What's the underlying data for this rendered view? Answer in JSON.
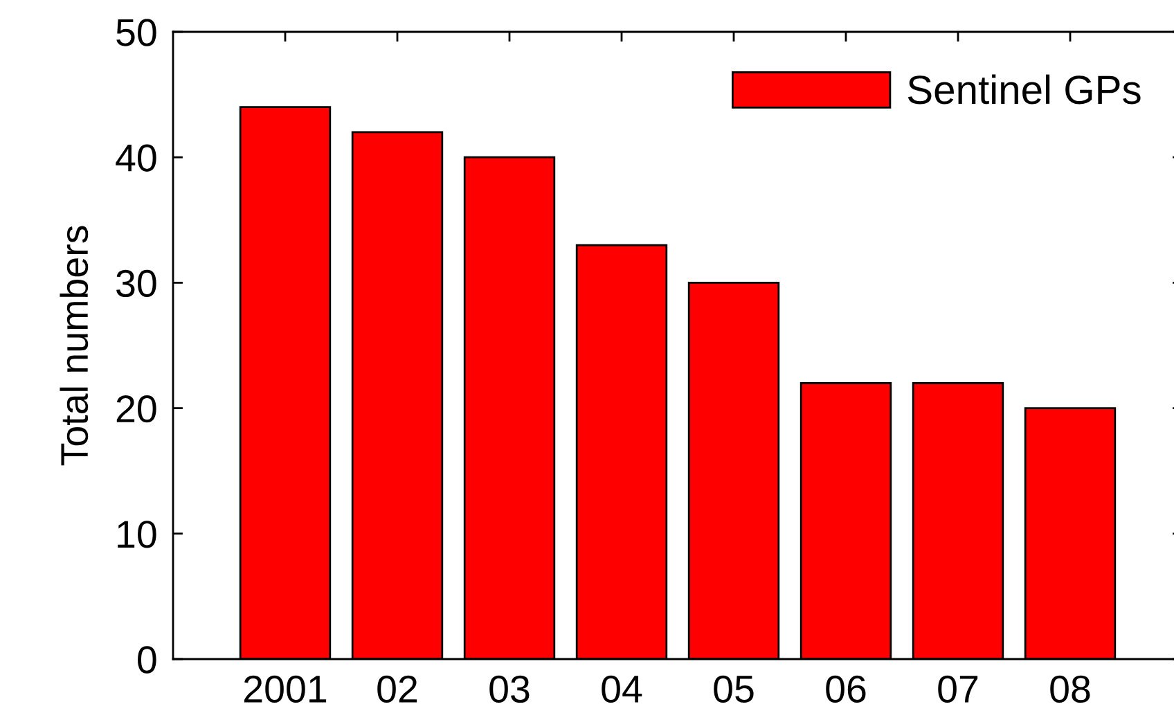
{
  "chart_data": {
    "type": "bar",
    "ylabel": "Total numbers",
    "categories": [
      "2001",
      "02",
      "03",
      "04",
      "05",
      "06",
      "07",
      "08"
    ],
    "series": [
      {
        "name": "Sentinel GPs",
        "color": "#ff0000",
        "values": [
          44,
          42,
          40,
          33,
          30,
          22,
          22,
          20
        ]
      }
    ],
    "ylim": [
      0,
      50
    ],
    "yticks": [
      0,
      10,
      20,
      30,
      40,
      50
    ],
    "legend": "top right"
  }
}
